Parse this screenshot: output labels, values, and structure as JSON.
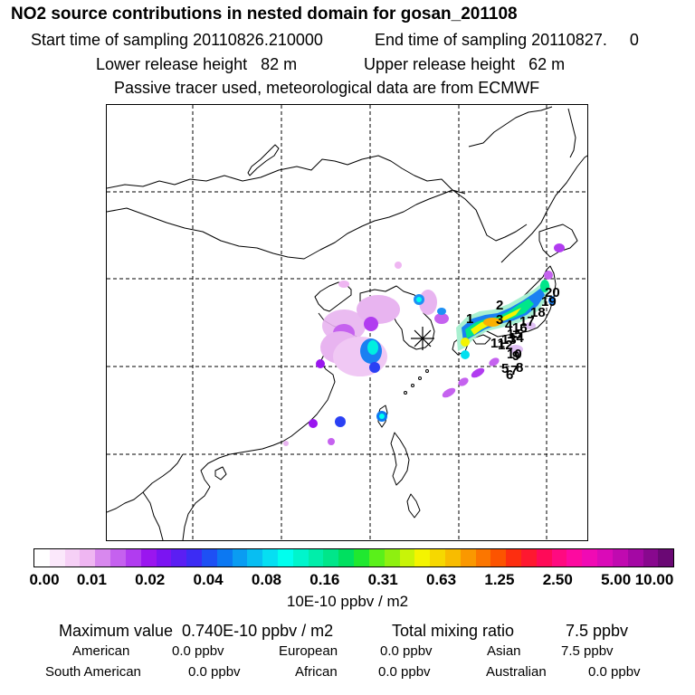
{
  "header": {
    "title": "NO2 source contributions in nested domain for gosan_201108",
    "start_label": "Start time of sampling 20110826.210000",
    "end_label": "End time of sampling 20110827.     0",
    "lower_label": "Lower release height   82 m",
    "upper_label": "Upper release height   62 m",
    "note": "Passive tracer used, meteorological data are from ECMWF"
  },
  "map": {
    "receptor_marker": "asterisk-icon",
    "receptor_location": "Gosan, Jeju Island",
    "trajectory_labels": [
      "1",
      "2",
      "3",
      "4",
      "5",
      "6",
      "7",
      "8",
      "9",
      "10",
      "11",
      "12",
      "13",
      "14",
      "15",
      "16",
      "17",
      "18",
      "19",
      "20"
    ],
    "colors": {
      "coast": "#000000",
      "grid": "#000000"
    }
  },
  "colorbar": {
    "ticks": [
      "0.00",
      "0.01",
      "0.02",
      "0.04",
      "0.08",
      "0.16",
      "0.31",
      "0.63",
      "1.25",
      "2.50",
      "5.00",
      "10.00"
    ],
    "unit": "10E-10 ppbv / m2",
    "colors": [
      "#ffffff",
      "#fbe8fb",
      "#f6d0f6",
      "#efb6f2",
      "#d888ee",
      "#c561ef",
      "#b13cf0",
      "#9a16ef",
      "#7b14f2",
      "#5b1ef3",
      "#3c2cf4",
      "#1e50f4",
      "#0c78f2",
      "#0a9cf2",
      "#08bef2",
      "#06dff2",
      "#00ffee",
      "#00f5cc",
      "#00eeaa",
      "#00e68a",
      "#00e060",
      "#20e830",
      "#5af01a",
      "#8ef010",
      "#c8f408",
      "#f4f400",
      "#f6d800",
      "#f8bc00",
      "#fa9800",
      "#fb7600",
      "#fc5400",
      "#fd2e10",
      "#fe1830",
      "#ff0a58",
      "#ff0a80",
      "#fd0aa0",
      "#f00ab4",
      "#da0ab8",
      "#c00ab0",
      "#a408a4",
      "#88088e",
      "#6a0874"
    ]
  },
  "summary": {
    "max_label": "Maximum value  0.740E-10 ppbv / m2",
    "total_label": "Total mixing ratio",
    "total_value": "7.5 ppbv",
    "regions": [
      {
        "name": "American",
        "value": "0.0 ppbv"
      },
      {
        "name": "European",
        "value": "0.0 ppbv"
      },
      {
        "name": "Asian",
        "value": "7.5 ppbv"
      },
      {
        "name": "South American",
        "value": "0.0 ppbv"
      },
      {
        "name": "African",
        "value": "0.0 ppbv"
      },
      {
        "name": "Australian",
        "value": "0.0 ppbv"
      }
    ]
  }
}
